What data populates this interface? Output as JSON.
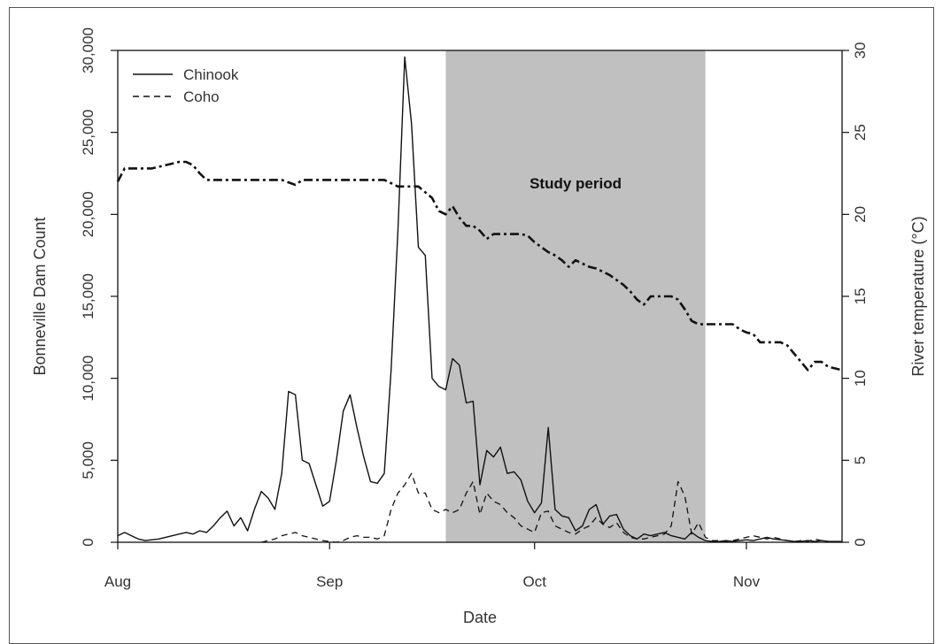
{
  "chart_data": {
    "type": "line",
    "xlabel": "Date",
    "ylabel_left": "Bonneville Dam Count",
    "ylabel_right": "River temperature (°C)",
    "x_range_day": [
      1,
      107
    ],
    "x_ticks": [
      {
        "day": 1,
        "label": "Aug"
      },
      {
        "day": 32,
        "label": "Sep"
      },
      {
        "day": 62,
        "label": "Oct"
      },
      {
        "day": 93,
        "label": "Nov"
      }
    ],
    "ylim_left": [
      0,
      30000
    ],
    "yticks_left": [
      "0",
      "5,000",
      "10,000",
      "15,000",
      "20,000",
      "25,000",
      "30,000"
    ],
    "ylim_right": [
      0,
      30
    ],
    "yticks_right": [
      "0",
      "5",
      "10",
      "15",
      "20",
      "25",
      "30"
    ],
    "shaded_region": {
      "from_day": 49,
      "to_day": 87,
      "label": "Study period",
      "color": "#c0c0c0"
    },
    "legend_position": "top-left",
    "legend": [
      "Chinook",
      "Coho"
    ],
    "series": [
      {
        "name": "Chinook",
        "style": "solid",
        "axis": "left",
        "points": [
          [
            1,
            400
          ],
          [
            2,
            600
          ],
          [
            3,
            400
          ],
          [
            4,
            200
          ],
          [
            5,
            100
          ],
          [
            6,
            150
          ],
          [
            7,
            200
          ],
          [
            8,
            300
          ],
          [
            9,
            400
          ],
          [
            10,
            500
          ],
          [
            11,
            600
          ],
          [
            12,
            500
          ],
          [
            13,
            700
          ],
          [
            14,
            600
          ],
          [
            15,
            1000
          ],
          [
            16,
            1500
          ],
          [
            17,
            1900
          ],
          [
            18,
            1000
          ],
          [
            19,
            1500
          ],
          [
            20,
            700
          ],
          [
            21,
            2000
          ],
          [
            22,
            3100
          ],
          [
            23,
            2700
          ],
          [
            24,
            2000
          ],
          [
            25,
            4200
          ],
          [
            26,
            9200
          ],
          [
            27,
            9000
          ],
          [
            28,
            5000
          ],
          [
            29,
            4800
          ],
          [
            30,
            3500
          ],
          [
            31,
            2200
          ],
          [
            32,
            2500
          ],
          [
            33,
            5000
          ],
          [
            34,
            8000
          ],
          [
            35,
            9000
          ],
          [
            36,
            7000
          ],
          [
            37,
            5200
          ],
          [
            38,
            3700
          ],
          [
            39,
            3600
          ],
          [
            40,
            4200
          ],
          [
            41,
            10500
          ],
          [
            42,
            19000
          ],
          [
            43,
            29600
          ],
          [
            44,
            25500
          ],
          [
            45,
            18000
          ],
          [
            46,
            17500
          ],
          [
            47,
            10000
          ],
          [
            48,
            9500
          ],
          [
            49,
            9300
          ],
          [
            50,
            11200
          ],
          [
            51,
            10800
          ],
          [
            52,
            8500
          ],
          [
            53,
            8600
          ],
          [
            54,
            3500
          ],
          [
            55,
            5600
          ],
          [
            56,
            5200
          ],
          [
            57,
            5800
          ],
          [
            58,
            4200
          ],
          [
            59,
            4300
          ],
          [
            60,
            3800
          ],
          [
            61,
            2500
          ],
          [
            62,
            1800
          ],
          [
            63,
            2400
          ],
          [
            64,
            7000
          ],
          [
            65,
            2000
          ],
          [
            66,
            1600
          ],
          [
            67,
            1500
          ],
          [
            68,
            700
          ],
          [
            69,
            1000
          ],
          [
            70,
            2000
          ],
          [
            71,
            2300
          ],
          [
            72,
            1100
          ],
          [
            73,
            1600
          ],
          [
            74,
            1700
          ],
          [
            75,
            800
          ],
          [
            76,
            400
          ],
          [
            77,
            200
          ],
          [
            78,
            500
          ],
          [
            79,
            400
          ],
          [
            80,
            500
          ],
          [
            81,
            600
          ],
          [
            82,
            400
          ],
          [
            83,
            300
          ],
          [
            84,
            200
          ],
          [
            85,
            600
          ],
          [
            86,
            300
          ],
          [
            87,
            100
          ],
          [
            88,
            50
          ],
          [
            89,
            50
          ],
          [
            90,
            100
          ],
          [
            91,
            50
          ],
          [
            92,
            100
          ],
          [
            93,
            150
          ],
          [
            94,
            100
          ],
          [
            95,
            200
          ],
          [
            96,
            300
          ],
          [
            97,
            200
          ],
          [
            98,
            150
          ],
          [
            99,
            100
          ],
          [
            100,
            50
          ],
          [
            101,
            50
          ],
          [
            102,
            100
          ],
          [
            103,
            50
          ],
          [
            104,
            100
          ],
          [
            105,
            50
          ],
          [
            106,
            50
          ],
          [
            107,
            50
          ]
        ]
      },
      {
        "name": "Coho",
        "style": "dashed",
        "axis": "left",
        "points": [
          [
            22,
            0
          ],
          [
            23,
            100
          ],
          [
            24,
            200
          ],
          [
            25,
            400
          ],
          [
            26,
            500
          ],
          [
            27,
            600
          ],
          [
            28,
            400
          ],
          [
            29,
            300
          ],
          [
            30,
            200
          ],
          [
            31,
            100
          ],
          [
            32,
            50
          ],
          [
            33,
            0
          ],
          [
            34,
            100
          ],
          [
            35,
            300
          ],
          [
            36,
            400
          ],
          [
            37,
            300
          ],
          [
            38,
            300
          ],
          [
            39,
            200
          ],
          [
            40,
            400
          ],
          [
            41,
            2000
          ],
          [
            42,
            3000
          ],
          [
            43,
            3500
          ],
          [
            44,
            4200
          ],
          [
            45,
            3000
          ],
          [
            46,
            3000
          ],
          [
            47,
            2000
          ],
          [
            48,
            1800
          ],
          [
            49,
            2000
          ],
          [
            50,
            1800
          ],
          [
            51,
            2000
          ],
          [
            52,
            3000
          ],
          [
            53,
            3700
          ],
          [
            54,
            1700
          ],
          [
            55,
            3000
          ],
          [
            56,
            2500
          ],
          [
            57,
            2300
          ],
          [
            58,
            1800
          ],
          [
            59,
            1500
          ],
          [
            60,
            1000
          ],
          [
            61,
            800
          ],
          [
            62,
            600
          ],
          [
            63,
            1800
          ],
          [
            64,
            1900
          ],
          [
            65,
            1000
          ],
          [
            66,
            800
          ],
          [
            67,
            600
          ],
          [
            68,
            500
          ],
          [
            69,
            800
          ],
          [
            70,
            1000
          ],
          [
            71,
            1500
          ],
          [
            72,
            1100
          ],
          [
            73,
            900
          ],
          [
            74,
            1200
          ],
          [
            75,
            600
          ],
          [
            76,
            300
          ],
          [
            77,
            200
          ],
          [
            78,
            200
          ],
          [
            79,
            300
          ],
          [
            80,
            400
          ],
          [
            81,
            500
          ],
          [
            82,
            1000
          ],
          [
            83,
            3700
          ],
          [
            84,
            2800
          ],
          [
            85,
            500
          ],
          [
            86,
            1200
          ],
          [
            87,
            300
          ],
          [
            88,
            100
          ],
          [
            89,
            100
          ],
          [
            90,
            50
          ],
          [
            91,
            100
          ],
          [
            92,
            200
          ],
          [
            93,
            300
          ],
          [
            94,
            400
          ],
          [
            95,
            300
          ],
          [
            96,
            200
          ],
          [
            97,
            300
          ],
          [
            98,
            200
          ],
          [
            99,
            100
          ],
          [
            100,
            50
          ],
          [
            101,
            100
          ],
          [
            102,
            50
          ],
          [
            103,
            200
          ],
          [
            104,
            100
          ],
          [
            105,
            50
          ],
          [
            106,
            50
          ],
          [
            107,
            50
          ]
        ]
      },
      {
        "name": "",
        "style": "dotdash",
        "axis": "right",
        "points": [
          [
            1,
            22
          ],
          [
            2,
            22.8
          ],
          [
            3,
            22.8
          ],
          [
            6,
            22.8
          ],
          [
            10,
            23.2
          ],
          [
            11,
            23.2
          ],
          [
            12,
            23
          ],
          [
            13,
            22.5
          ],
          [
            14,
            22.1
          ],
          [
            17,
            22.1
          ],
          [
            20,
            22.1
          ],
          [
            25,
            22.1
          ],
          [
            27,
            21.8
          ],
          [
            28,
            22.1
          ],
          [
            32,
            22.1
          ],
          [
            37,
            22.1
          ],
          [
            40,
            22.1
          ],
          [
            42,
            21.7
          ],
          [
            45,
            21.7
          ],
          [
            47,
            21
          ],
          [
            48,
            20.2
          ],
          [
            49,
            20
          ],
          [
            50,
            20.5
          ],
          [
            51,
            19.8
          ],
          [
            52,
            19.3
          ],
          [
            53,
            19.3
          ],
          [
            54,
            19
          ],
          [
            55,
            18.5
          ],
          [
            56,
            18.8
          ],
          [
            57,
            18.8
          ],
          [
            59,
            18.8
          ],
          [
            60,
            18.8
          ],
          [
            61,
            18.7
          ],
          [
            62,
            18.3
          ],
          [
            63,
            18
          ],
          [
            64,
            17.7
          ],
          [
            65,
            17.5
          ],
          [
            66,
            17.2
          ],
          [
            67,
            16.8
          ],
          [
            68,
            17.2
          ],
          [
            69,
            17
          ],
          [
            70,
            16.8
          ],
          [
            71,
            16.7
          ],
          [
            72,
            16.5
          ],
          [
            73,
            16.3
          ],
          [
            74,
            16
          ],
          [
            75,
            15.7
          ],
          [
            76,
            15.3
          ],
          [
            77,
            14.8
          ],
          [
            78,
            14.5
          ],
          [
            79,
            15
          ],
          [
            80,
            15
          ],
          [
            81,
            15
          ],
          [
            82,
            15
          ],
          [
            83,
            14.8
          ],
          [
            84,
            14.2
          ],
          [
            85,
            13.5
          ],
          [
            86,
            13.3
          ],
          [
            87,
            13.3
          ],
          [
            88,
            13.3
          ],
          [
            89,
            13.3
          ],
          [
            90,
            13.3
          ],
          [
            91,
            13.3
          ],
          [
            92,
            13
          ],
          [
            93,
            12.8
          ],
          [
            94,
            12.7
          ],
          [
            95,
            12.2
          ],
          [
            96,
            12.2
          ],
          [
            97,
            12.2
          ],
          [
            98,
            12.2
          ],
          [
            99,
            12
          ],
          [
            100,
            11.5
          ],
          [
            101,
            11
          ],
          [
            102,
            10.5
          ],
          [
            103,
            11
          ],
          [
            104,
            11
          ],
          [
            105,
            10.7
          ],
          [
            106,
            10.6
          ],
          [
            107,
            10.5
          ]
        ]
      }
    ]
  }
}
